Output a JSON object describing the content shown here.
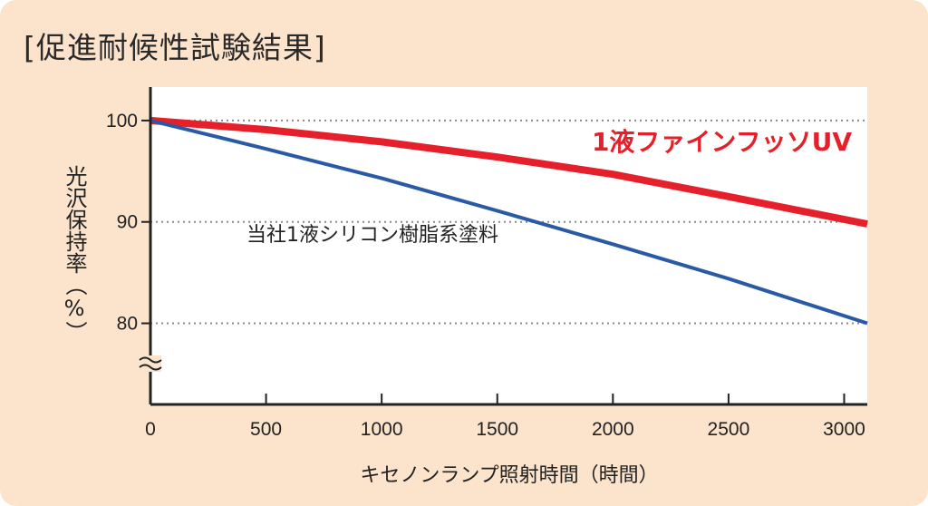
{
  "title": "[促進耐候性試験結果]",
  "chart_data": {
    "type": "line",
    "title": "[促進耐候性試験結果]",
    "xlabel": "キセノンランプ照射時間（時間）",
    "ylabel": "光沢保持率（%）",
    "xlim": [
      0,
      3100
    ],
    "ylim": [
      72,
      103.3
    ],
    "x_ticks": [
      0,
      500,
      1000,
      1500,
      2000,
      2500,
      3000
    ],
    "x_tick_labels": [
      "0",
      "500",
      "1000",
      "1500",
      "2000",
      "2500",
      "3000"
    ],
    "y_ticks": [
      80,
      90,
      100
    ],
    "y_tick_labels": [
      "80",
      "90",
      "100"
    ],
    "y_axis_break": true,
    "grid": "horizontal dotted",
    "series": [
      {
        "name": "1液ファインフッソUV",
        "color": "#e6202b",
        "x": [
          0,
          500,
          1000,
          1500,
          2000,
          2500,
          3100
        ],
        "y": [
          100,
          99.1,
          97.9,
          96.4,
          94.7,
          92.5,
          89.8
        ]
      },
      {
        "name": "当社1液シリコン樹脂系塗料",
        "color": "#2a5aa6",
        "x": [
          0,
          500,
          1000,
          1500,
          2000,
          2500,
          3100
        ],
        "y": [
          100,
          97.2,
          94.3,
          91.1,
          87.8,
          84.4,
          80.0
        ]
      }
    ]
  }
}
